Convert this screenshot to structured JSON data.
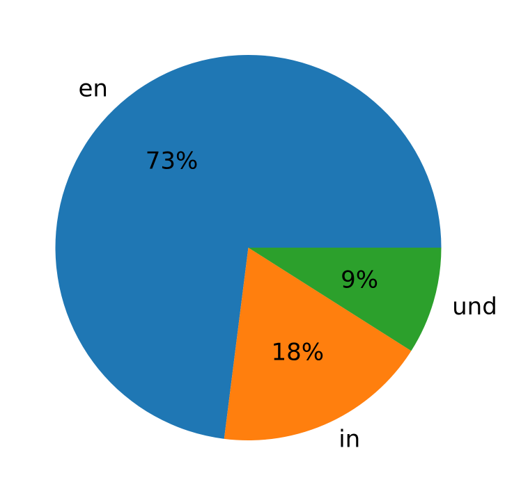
{
  "chart_data": {
    "type": "pie",
    "title": "",
    "labels": [
      "en",
      "in",
      "und"
    ],
    "percent_labels": [
      "73%",
      "18%",
      "9%"
    ],
    "values": [
      73,
      18,
      9
    ],
    "colors": [
      "#1f77b4",
      "#ff7f0e",
      "#2ca02c"
    ],
    "start_angle_deg": 0,
    "direction": "counterclockwise",
    "legend": "none"
  }
}
